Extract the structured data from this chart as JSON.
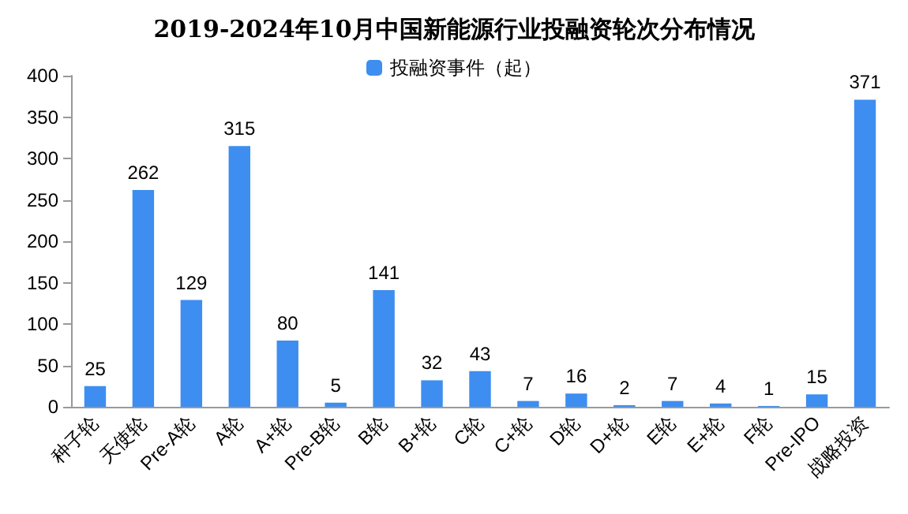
{
  "chart_data": {
    "type": "bar",
    "title": "2019-2024年10月中国新能源行业投融资轮次分布情况",
    "categories": [
      "种子轮",
      "天使轮",
      "Pre-A轮",
      "A轮",
      "A+轮",
      "Pre-B轮",
      "B轮",
      "B+轮",
      "C轮",
      "C+轮",
      "D轮",
      "D+轮",
      "E轮",
      "E+轮",
      "F轮",
      "Pre-IPO",
      "战略投资"
    ],
    "series": [
      {
        "name": "投融资事件（起）",
        "color": "#3d8ef0",
        "values": [
          25,
          262,
          129,
          315,
          80,
          5,
          141,
          32,
          43,
          7,
          16,
          2,
          7,
          4,
          1,
          15,
          371
        ]
      }
    ],
    "ylim": [
      0,
      400
    ],
    "yticks": [
      0,
      50,
      100,
      150,
      200,
      250,
      300,
      350,
      400
    ],
    "data_labels": true,
    "legend": "top",
    "grid": false
  }
}
